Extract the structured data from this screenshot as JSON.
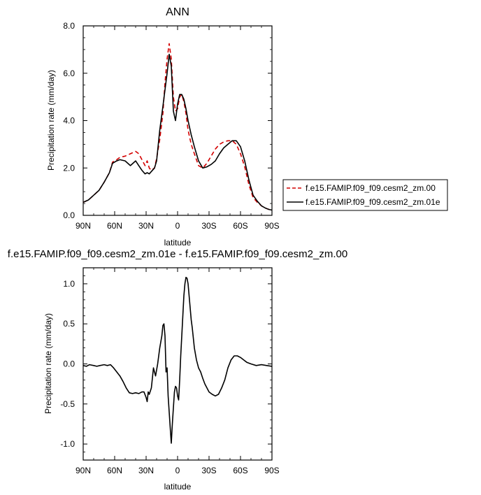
{
  "chart_data": [
    {
      "type": "line",
      "title": "ANN",
      "xlabel": "latitude",
      "ylabel": "Precipitation rate (mm/day)",
      "xlim": [
        -90,
        90
      ],
      "ylim": [
        0,
        8
      ],
      "x_ticks": [
        -90,
        -60,
        -30,
        0,
        30,
        60,
        90
      ],
      "x_tick_labels": [
        "90N",
        "60N",
        "30N",
        "0",
        "30S",
        "60S",
        "90S"
      ],
      "y_ticks": [
        0,
        2,
        4,
        6,
        8
      ],
      "y_tick_labels": [
        "0.0",
        "2.0",
        "4.0",
        "6.0",
        "8.0"
      ],
      "legend_position": "right",
      "series": [
        {
          "name": "f.e15.FAMIP.f09_f09.cesm2_zm.00",
          "color": "#d40000",
          "dash": "dashed",
          "x": [
            -90,
            -85,
            -80,
            -75,
            -70,
            -65,
            -62,
            -58,
            -55,
            -50,
            -45,
            -40,
            -37,
            -34,
            -31,
            -29,
            -27,
            -25,
            -22,
            -20,
            -17,
            -14,
            -12,
            -10,
            -8,
            -6,
            -4,
            -2,
            0,
            2,
            4,
            6,
            8,
            10,
            13,
            16,
            20,
            24,
            28,
            32,
            36,
            40,
            44,
            48,
            52,
            56,
            60,
            64,
            68,
            72,
            76,
            80,
            84,
            87,
            90
          ],
          "y": [
            0.55,
            0.65,
            0.85,
            1.05,
            1.4,
            1.8,
            2.25,
            2.35,
            2.45,
            2.5,
            2.6,
            2.7,
            2.6,
            2.35,
            2.1,
            2.3,
            2.0,
            1.9,
            2.0,
            2.4,
            3.2,
            4.3,
            5.6,
            6.6,
            7.25,
            6.6,
            5.0,
            4.4,
            4.5,
            5.0,
            5.1,
            4.8,
            4.3,
            3.6,
            3.0,
            2.6,
            2.1,
            2.0,
            2.2,
            2.5,
            2.8,
            3.0,
            3.1,
            3.15,
            3.15,
            3.0,
            2.6,
            2.05,
            1.3,
            0.75,
            0.55,
            0.4,
            0.3,
            0.25,
            0.22
          ]
        },
        {
          "name": "f.e15.FAMIP.f09_f09.cesm2_zm.01e",
          "color": "#000000",
          "dash": "solid",
          "x": [
            -90,
            -85,
            -80,
            -75,
            -70,
            -65,
            -62,
            -58,
            -55,
            -50,
            -45,
            -40,
            -37,
            -34,
            -31,
            -29,
            -27,
            -25,
            -22,
            -20,
            -17,
            -14,
            -12,
            -10,
            -8,
            -6,
            -4,
            -2,
            0,
            2,
            4,
            6,
            8,
            10,
            13,
            16,
            20,
            24,
            28,
            32,
            36,
            40,
            44,
            48,
            52,
            56,
            60,
            64,
            68,
            72,
            76,
            80,
            84,
            87,
            90
          ],
          "y": [
            0.55,
            0.65,
            0.85,
            1.05,
            1.4,
            1.8,
            2.2,
            2.3,
            2.35,
            2.3,
            2.1,
            2.3,
            2.1,
            1.9,
            1.75,
            1.8,
            1.75,
            1.85,
            2.0,
            2.3,
            3.6,
            4.6,
            5.3,
            6.0,
            6.8,
            6.3,
            4.4,
            4.0,
            4.7,
            5.1,
            5.1,
            4.9,
            4.5,
            4.0,
            3.4,
            2.9,
            2.3,
            2.0,
            2.05,
            2.15,
            2.3,
            2.6,
            2.85,
            3.0,
            3.15,
            3.15,
            2.9,
            2.3,
            1.5,
            0.85,
            0.6,
            0.4,
            0.3,
            0.25,
            0.22
          ]
        }
      ]
    },
    {
      "type": "line",
      "title": "f.e15.FAMIP.f09_f09.cesm2_zm.01e - f.e15.FAMIP.f09_f09.cesm2_zm.00",
      "xlabel": "latitude",
      "ylabel": "Precipitation rate (mm/day)",
      "xlim": [
        -90,
        90
      ],
      "ylim": [
        -1.2,
        1.2
      ],
      "x_ticks": [
        -90,
        -60,
        -30,
        0,
        30,
        60,
        90
      ],
      "x_tick_labels": [
        "90N",
        "60N",
        "30N",
        "0",
        "30S",
        "60S",
        "90S"
      ],
      "y_ticks": [
        -1.0,
        -0.5,
        0.0,
        0.5,
        1.0
      ],
      "y_tick_labels": [
        "-1.0",
        "-0.5",
        "0.0",
        "0.5",
        "1.0"
      ],
      "series": [
        {
          "color": "#000000",
          "dash": "solid",
          "x": [
            -90,
            -87,
            -84,
            -80,
            -77,
            -74,
            -70,
            -67,
            -64,
            -61,
            -58,
            -55,
            -52,
            -49,
            -46,
            -43,
            -40,
            -37,
            -34,
            -32,
            -30,
            -29,
            -28,
            -27,
            -25,
            -23,
            -21,
            -19,
            -17,
            -15,
            -14,
            -13,
            -12,
            -11,
            -10,
            -9,
            -8,
            -7,
            -6,
            -5,
            -4,
            -3,
            -2,
            -1,
            0,
            1,
            2,
            3,
            4,
            5,
            6,
            7,
            8,
            9,
            10,
            11,
            12,
            13,
            14,
            16,
            18,
            20,
            22,
            24,
            26,
            28,
            30,
            33,
            36,
            39,
            42,
            45,
            48,
            51,
            54,
            57,
            60,
            63,
            66,
            70,
            75,
            80,
            85,
            90
          ],
          "y": [
            -0.02,
            -0.03,
            -0.01,
            -0.02,
            -0.03,
            -0.02,
            -0.01,
            -0.02,
            -0.01,
            -0.05,
            -0.1,
            -0.15,
            -0.22,
            -0.3,
            -0.36,
            -0.37,
            -0.36,
            -0.37,
            -0.35,
            -0.35,
            -0.42,
            -0.47,
            -0.35,
            -0.38,
            -0.3,
            -0.05,
            -0.15,
            0.0,
            0.2,
            0.35,
            0.48,
            0.5,
            0.35,
            -0.1,
            -0.05,
            -0.4,
            -0.6,
            -0.8,
            -0.99,
            -0.75,
            -0.55,
            -0.35,
            -0.28,
            -0.3,
            -0.4,
            -0.45,
            -0.2,
            0.1,
            0.35,
            0.6,
            0.85,
            1.0,
            1.08,
            1.07,
            1.0,
            0.85,
            0.7,
            0.55,
            0.45,
            0.2,
            0.05,
            -0.05,
            -0.1,
            -0.18,
            -0.25,
            -0.3,
            -0.35,
            -0.38,
            -0.4,
            -0.38,
            -0.3,
            -0.2,
            -0.05,
            0.05,
            0.1,
            0.1,
            0.08,
            0.05,
            0.02,
            0.0,
            -0.02,
            -0.01,
            -0.02,
            -0.03
          ]
        }
      ]
    }
  ]
}
